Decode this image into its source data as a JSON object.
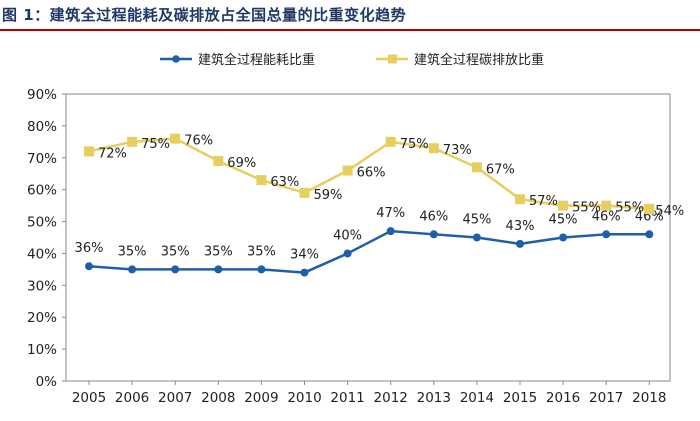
{
  "header": {
    "title": "图 1：建筑全过程能耗及碳排放占全国总量的比重变化趋势"
  },
  "colors": {
    "series_energy": "#1f5fa8",
    "series_carbon": "#e6cf5f",
    "axis": "#888888",
    "title": "#1f3864",
    "rule": "#b40000"
  },
  "chart_data": {
    "type": "line",
    "title": "建筑全过程能耗及碳排放占全国总量的比重变化趋势",
    "xlabel": "",
    "ylabel": "",
    "ylim": [
      0,
      90
    ],
    "y_ticks": [
      "0%",
      "10%",
      "20%",
      "30%",
      "40%",
      "50%",
      "60%",
      "70%",
      "80%",
      "90%"
    ],
    "legend_position": "top",
    "categories": [
      "2005",
      "2006",
      "2007",
      "2008",
      "2009",
      "2010",
      "2011",
      "2012",
      "2013",
      "2014",
      "2015",
      "2016",
      "2017",
      "2018"
    ],
    "x_tick_labels": [
      "2005",
      "2006",
      "2007",
      "2008",
      "2009",
      "2010",
      "2011",
      "2012",
      "2013",
      "2014",
      "2015",
      "2016",
      "2017",
      "2018"
    ],
    "series": [
      {
        "name": "建筑全过程能耗比重",
        "marker": "circle",
        "values": [
          36,
          35,
          35,
          35,
          35,
          34,
          40,
          47,
          46,
          45,
          43,
          45,
          46,
          46
        ],
        "labels": [
          "36%",
          "35%",
          "35%",
          "35%",
          "35%",
          "34%",
          "40%",
          "47%",
          "46%",
          "45%",
          "43%",
          "45%",
          "46%",
          "46%"
        ]
      },
      {
        "name": "建筑全过程碳排放比重",
        "marker": "square",
        "values": [
          72,
          75,
          76,
          69,
          63,
          59,
          66,
          75,
          73,
          67,
          57,
          55,
          55,
          54
        ],
        "labels": [
          "72%",
          "75%",
          "76%",
          "69%",
          "63%",
          "59%",
          "66%",
          "75%",
          "73%",
          "67%",
          "57%",
          "55%",
          "55%",
          "54%"
        ]
      }
    ]
  }
}
